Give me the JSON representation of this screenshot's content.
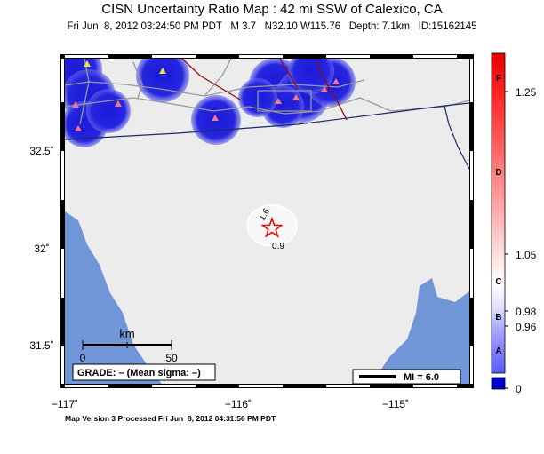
{
  "header": {
    "title": "CISN Uncertainty Ratio Map : 42 mi SSW of Calexico, CA",
    "subtitle": "Fri Jun  8, 2012 03:24:50 PM PDT   M 3.7   N32.10 W115.76   Depth: 7.1km   ID:15162145"
  },
  "map": {
    "lat_labels": [
      "32.5˚",
      "32˚",
      "31.5˚"
    ],
    "lon_labels": [
      "−117˚",
      "−116˚",
      "−115˚"
    ],
    "contour_labels": [
      "1.6",
      "0.9"
    ],
    "scale_bar": {
      "unit": "km",
      "labels": [
        "0",
        "50"
      ]
    },
    "grade": "GRADE: – (Mean sigma: –)",
    "mmi_legend": "MI = 6.0"
  },
  "colorbar": {
    "grades": [
      "F",
      "D",
      "C",
      "B",
      "A"
    ],
    "ticks": [
      "1.25",
      "1.05",
      "0.98",
      "0.96",
      "0"
    ]
  },
  "footer": "Map Version 3 Processed Fri Jun  8, 2012 04:31:56 PM PDT"
}
